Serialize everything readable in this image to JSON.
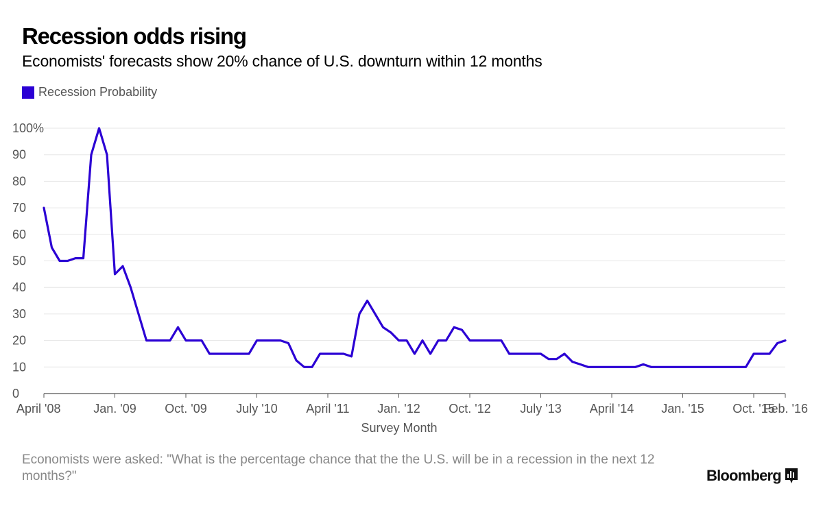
{
  "header": {
    "title": "Recession odds rising",
    "subtitle": "Economists' forecasts show 20% chance of U.S. downturn within 12 months"
  },
  "footer": {
    "note": "Economists were asked: \"What is the percentage chance that the the U.S. will be in a recession in the next 12 months?\"",
    "brand": "Bloomberg",
    "brand_icon": "bar-chart-icon"
  },
  "colors": {
    "series": "#2b00d4",
    "grid": "#e6e6e6",
    "axis": "#555555",
    "text_muted": "#888888"
  },
  "chart_data": {
    "type": "line",
    "xlabel": "Survey Month",
    "ylabel": "",
    "ylim": [
      0,
      100
    ],
    "grid": true,
    "legend": "top-left",
    "x_range": [
      "2008-04",
      "2016-02"
    ],
    "y_ticks": [
      0,
      10,
      20,
      30,
      40,
      50,
      60,
      70,
      80,
      90,
      100
    ],
    "y_tick_labels": [
      "0",
      "10",
      "20",
      "30",
      "40",
      "50",
      "60",
      "70",
      "80",
      "90",
      "100%"
    ],
    "x_ticks": [
      {
        "x": "2008-04",
        "label": "April '08"
      },
      {
        "x": "2009-01",
        "label": "Jan. '09"
      },
      {
        "x": "2009-10",
        "label": "Oct. '09"
      },
      {
        "x": "2010-07",
        "label": "July '10"
      },
      {
        "x": "2011-04",
        "label": "April '11"
      },
      {
        "x": "2012-01",
        "label": "Jan. '12"
      },
      {
        "x": "2012-10",
        "label": "Oct. '12"
      },
      {
        "x": "2013-07",
        "label": "July '13"
      },
      {
        "x": "2014-04",
        "label": "April '14"
      },
      {
        "x": "2015-01",
        "label": "Jan. '15"
      },
      {
        "x": "2015-10",
        "label": "Oct. '15"
      },
      {
        "x": "2016-02",
        "label": "Feb. '16"
      }
    ],
    "series": [
      {
        "name": "Recession Probability",
        "points": [
          [
            "2008-04",
            70
          ],
          [
            "2008-05",
            55
          ],
          [
            "2008-06",
            50
          ],
          [
            "2008-07",
            50
          ],
          [
            "2008-08",
            51
          ],
          [
            "2008-09",
            51
          ],
          [
            "2008-10",
            90
          ],
          [
            "2008-11",
            100
          ],
          [
            "2008-12",
            90
          ],
          [
            "2009-01",
            45
          ],
          [
            "2009-02",
            48
          ],
          [
            "2009-03",
            40
          ],
          [
            "2009-04",
            30
          ],
          [
            "2009-05",
            20
          ],
          [
            "2009-06",
            20
          ],
          [
            "2009-07",
            20
          ],
          [
            "2009-08",
            20
          ],
          [
            "2009-09",
            25
          ],
          [
            "2009-10",
            20
          ],
          [
            "2009-11",
            20
          ],
          [
            "2009-12",
            20
          ],
          [
            "2010-01",
            15
          ],
          [
            "2010-02",
            15
          ],
          [
            "2010-03",
            15
          ],
          [
            "2010-04",
            15
          ],
          [
            "2010-05",
            15
          ],
          [
            "2010-06",
            15
          ],
          [
            "2010-07",
            20
          ],
          [
            "2010-08",
            20
          ],
          [
            "2010-09",
            20
          ],
          [
            "2010-10",
            20
          ],
          [
            "2010-11",
            19
          ],
          [
            "2010-12",
            12.5
          ],
          [
            "2011-01",
            10
          ],
          [
            "2011-02",
            10
          ],
          [
            "2011-03",
            15
          ],
          [
            "2011-04",
            15
          ],
          [
            "2011-05",
            15
          ],
          [
            "2011-06",
            15
          ],
          [
            "2011-07",
            14
          ],
          [
            "2011-08",
            30
          ],
          [
            "2011-09",
            35
          ],
          [
            "2011-10",
            30
          ],
          [
            "2011-11",
            25
          ],
          [
            "2011-12",
            23
          ],
          [
            "2012-01",
            20
          ],
          [
            "2012-02",
            20
          ],
          [
            "2012-03",
            15
          ],
          [
            "2012-04",
            20
          ],
          [
            "2012-05",
            15
          ],
          [
            "2012-06",
            20
          ],
          [
            "2012-07",
            20
          ],
          [
            "2012-08",
            25
          ],
          [
            "2012-09",
            24
          ],
          [
            "2012-10",
            20
          ],
          [
            "2012-11",
            20
          ],
          [
            "2012-12",
            20
          ],
          [
            "2013-01",
            20
          ],
          [
            "2013-02",
            20
          ],
          [
            "2013-03",
            15
          ],
          [
            "2013-04",
            15
          ],
          [
            "2013-05",
            15
          ],
          [
            "2013-06",
            15
          ],
          [
            "2013-07",
            15
          ],
          [
            "2013-08",
            13
          ],
          [
            "2013-09",
            13
          ],
          [
            "2013-10",
            15
          ],
          [
            "2013-11",
            12
          ],
          [
            "2013-12",
            11
          ],
          [
            "2014-01",
            10
          ],
          [
            "2014-02",
            10
          ],
          [
            "2014-03",
            10
          ],
          [
            "2014-04",
            10
          ],
          [
            "2014-05",
            10
          ],
          [
            "2014-06",
            10
          ],
          [
            "2014-07",
            10
          ],
          [
            "2014-08",
            11
          ],
          [
            "2014-09",
            10
          ],
          [
            "2014-10",
            10
          ],
          [
            "2014-11",
            10
          ],
          [
            "2014-12",
            10
          ],
          [
            "2015-01",
            10
          ],
          [
            "2015-02",
            10
          ],
          [
            "2015-03",
            10
          ],
          [
            "2015-04",
            10
          ],
          [
            "2015-05",
            10
          ],
          [
            "2015-06",
            10
          ],
          [
            "2015-07",
            10
          ],
          [
            "2015-08",
            10
          ],
          [
            "2015-09",
            10
          ],
          [
            "2015-10",
            15
          ],
          [
            "2015-11",
            15
          ],
          [
            "2015-12",
            15
          ],
          [
            "2016-01",
            19
          ],
          [
            "2016-02",
            20
          ]
        ]
      }
    ]
  }
}
